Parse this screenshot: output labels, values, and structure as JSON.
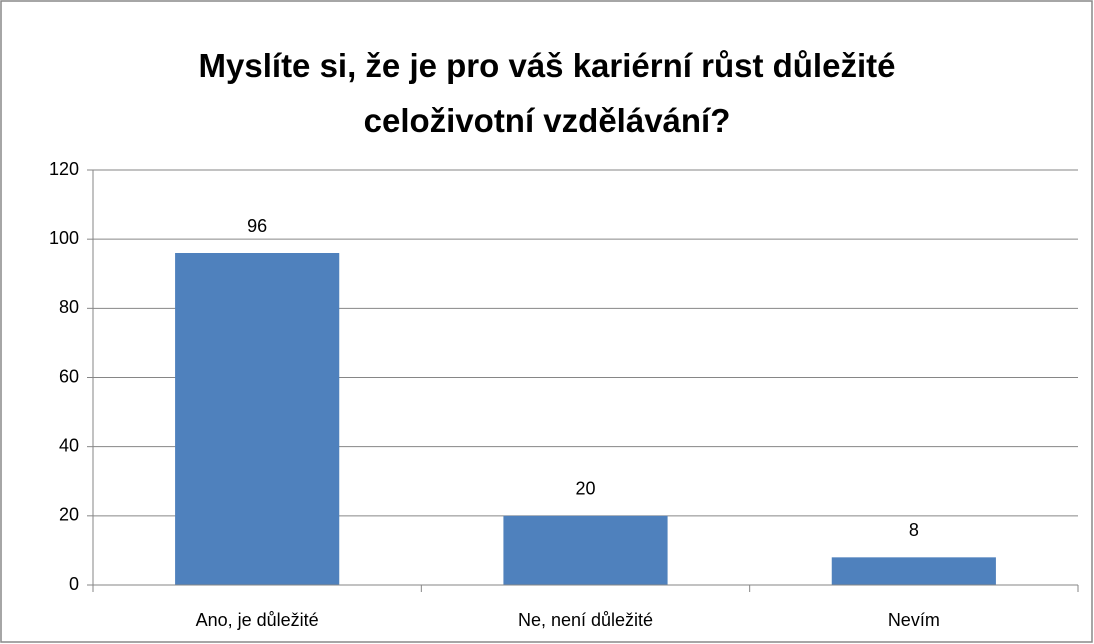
{
  "chart_data": {
    "type": "bar",
    "title": "Myslíte si, že je pro váš kariérní růst důležité celoživotní vzdělávání?",
    "categories": [
      "Ano, je důležité",
      "Ne, není důležité",
      "Nevím"
    ],
    "values": [
      96,
      20,
      8
    ],
    "color": "#4f81bd",
    "ylim": [
      0,
      120
    ],
    "yticks": [
      0,
      20,
      40,
      60,
      80,
      100,
      120
    ],
    "grid": true,
    "data_labels": true
  }
}
